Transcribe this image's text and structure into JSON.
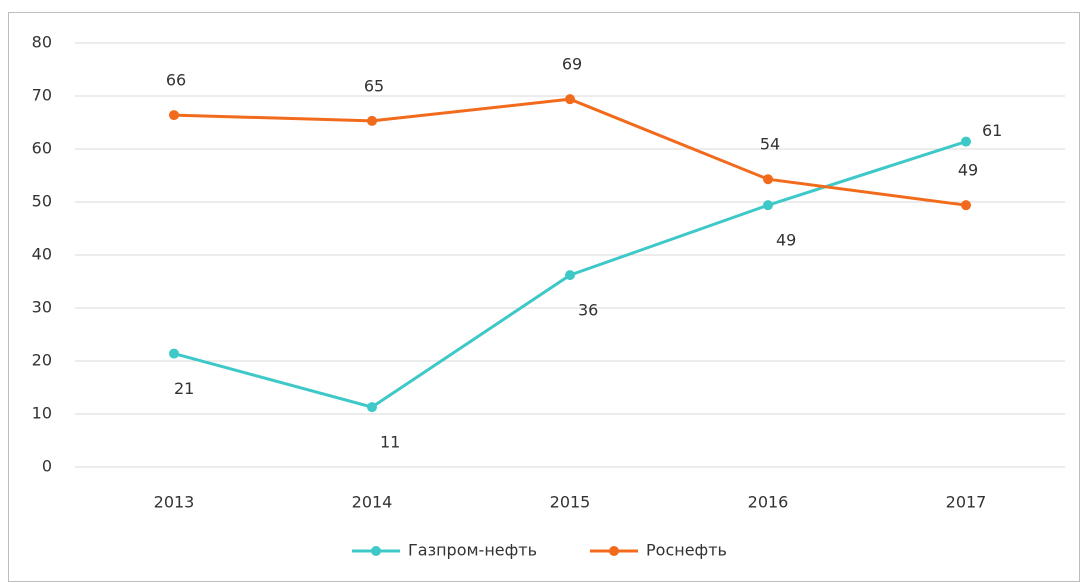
{
  "chart_data": {
    "type": "line",
    "categories": [
      "2013",
      "2014",
      "2015",
      "2016",
      "2017"
    ],
    "series": [
      {
        "name": "Газпром-нефть",
        "color": "#3ec8c8",
        "values": [
          21.4,
          11.3,
          36.2,
          49.4,
          61.4
        ],
        "value_labels": [
          "21",
          "11",
          "36",
          "49",
          "61"
        ]
      },
      {
        "name": "Роснефть",
        "color": "#f26b1d",
        "values": [
          66.4,
          65.3,
          69.4,
          54.3,
          49.4
        ],
        "value_labels": [
          "66",
          "65",
          "69",
          "54",
          "49"
        ]
      }
    ],
    "ylim": [
      0,
      80
    ],
    "yticks": [
      0,
      10,
      20,
      30,
      40,
      50,
      60,
      70,
      80
    ],
    "grid": true,
    "legend": "bottom"
  }
}
